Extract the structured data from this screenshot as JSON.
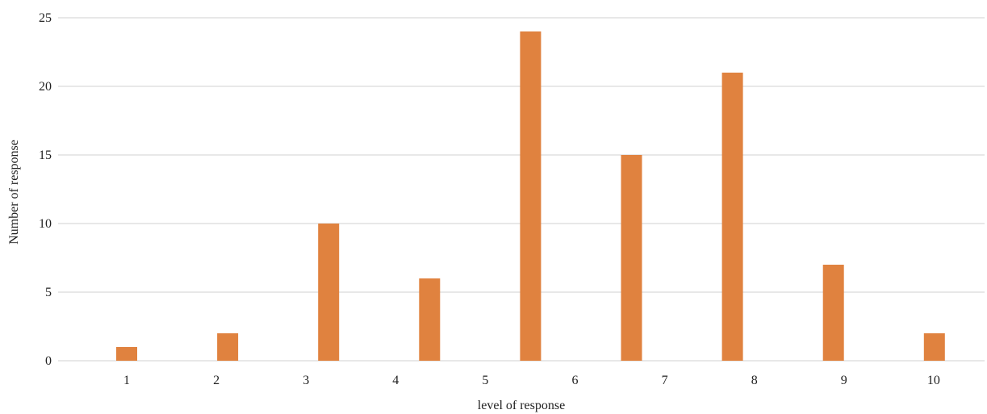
{
  "chart_data": {
    "type": "bar",
    "title": "",
    "xlabel": "level of response",
    "ylabel": "Number of response",
    "y_ticks": [
      0,
      5,
      10,
      15,
      20,
      25
    ],
    "ylim": [
      0,
      25
    ],
    "x_ticks": [
      "1",
      "2",
      "3",
      "4",
      "5",
      "6",
      "7",
      "8",
      "9",
      "10"
    ],
    "values": [
      1,
      2,
      10,
      6,
      24,
      15,
      21,
      7,
      2
    ],
    "bar_color": "#e0823f",
    "grid": true,
    "legend": "none"
  }
}
